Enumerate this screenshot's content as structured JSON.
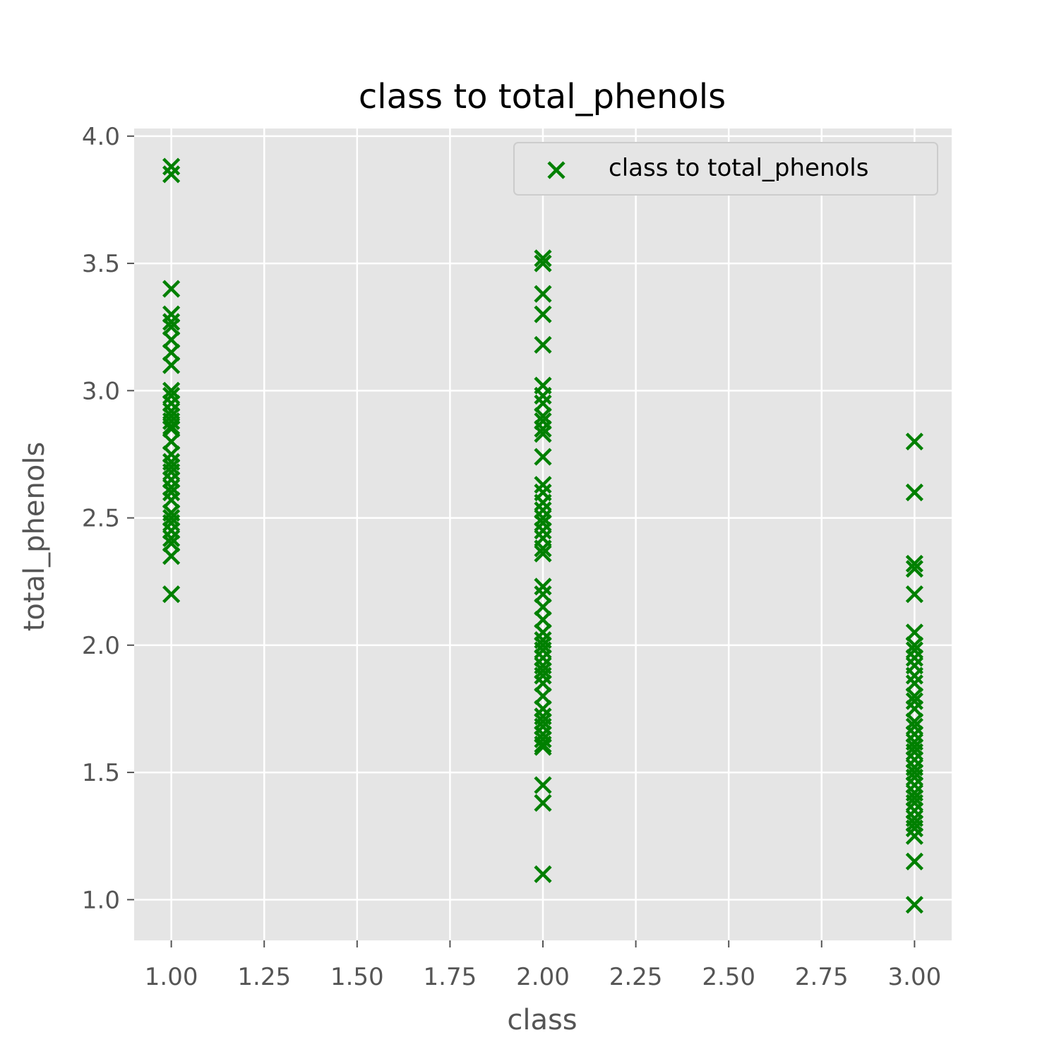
{
  "chart_data": {
    "type": "scatter",
    "title": "class to total_phenols",
    "xlabel": "class",
    "ylabel": "total_phenols",
    "xlim": [
      0.9,
      3.1
    ],
    "ylim": [
      0.84,
      4.03
    ],
    "x_ticks": [
      "1.00",
      "1.25",
      "1.50",
      "1.75",
      "2.00",
      "2.25",
      "2.50",
      "2.75",
      "3.00"
    ],
    "y_ticks": [
      "1.0",
      "1.5",
      "2.0",
      "2.5",
      "3.0",
      "3.5",
      "4.0"
    ],
    "grid": true,
    "legend_position": "top-right",
    "marker": "x",
    "colors": {
      "marker": "#008000",
      "background": "#E5E5E5",
      "grid": "#FFFFFF"
    },
    "series": [
      {
        "name": "class to total_phenols",
        "points": [
          [
            1,
            3.88
          ],
          [
            1,
            3.85
          ],
          [
            1,
            3.4
          ],
          [
            1,
            3.3
          ],
          [
            1,
            3.27
          ],
          [
            1,
            3.25
          ],
          [
            1,
            3.2
          ],
          [
            1,
            3.15
          ],
          [
            1,
            3.1
          ],
          [
            1,
            3.0
          ],
          [
            1,
            2.98
          ],
          [
            1,
            2.95
          ],
          [
            1,
            2.92
          ],
          [
            1,
            2.9
          ],
          [
            1,
            2.88
          ],
          [
            1,
            2.86
          ],
          [
            1,
            2.85
          ],
          [
            1,
            2.8
          ],
          [
            1,
            2.75
          ],
          [
            1,
            2.72
          ],
          [
            1,
            2.7
          ],
          [
            1,
            2.68
          ],
          [
            1,
            2.65
          ],
          [
            1,
            2.62
          ],
          [
            1,
            2.6
          ],
          [
            1,
            2.57
          ],
          [
            1,
            2.52
          ],
          [
            1,
            2.5
          ],
          [
            1,
            2.48
          ],
          [
            1,
            2.45
          ],
          [
            1,
            2.42
          ],
          [
            1,
            2.4
          ],
          [
            1,
            2.35
          ],
          [
            1,
            2.2
          ],
          [
            2,
            3.52
          ],
          [
            2,
            3.5
          ],
          [
            2,
            3.38
          ],
          [
            2,
            3.3
          ],
          [
            2,
            3.18
          ],
          [
            2,
            3.02
          ],
          [
            2,
            2.98
          ],
          [
            2,
            2.95
          ],
          [
            2,
            2.9
          ],
          [
            2,
            2.88
          ],
          [
            2,
            2.85
          ],
          [
            2,
            2.83
          ],
          [
            2,
            2.74
          ],
          [
            2,
            2.63
          ],
          [
            2,
            2.6
          ],
          [
            2,
            2.56
          ],
          [
            2,
            2.53
          ],
          [
            2,
            2.5
          ],
          [
            2,
            2.48
          ],
          [
            2,
            2.45
          ],
          [
            2,
            2.42
          ],
          [
            2,
            2.38
          ],
          [
            2,
            2.36
          ],
          [
            2,
            2.23
          ],
          [
            2,
            2.2
          ],
          [
            2,
            2.15
          ],
          [
            2,
            2.1
          ],
          [
            2,
            2.05
          ],
          [
            2,
            2.02
          ],
          [
            2,
            2.0
          ],
          [
            2,
            1.98
          ],
          [
            2,
            1.95
          ],
          [
            2,
            1.92
          ],
          [
            2,
            1.9
          ],
          [
            2,
            1.88
          ],
          [
            2,
            1.85
          ],
          [
            2,
            1.8
          ],
          [
            2,
            1.75
          ],
          [
            2,
            1.72
          ],
          [
            2,
            1.7
          ],
          [
            2,
            1.68
          ],
          [
            2,
            1.65
          ],
          [
            2,
            1.63
          ],
          [
            2,
            1.61
          ],
          [
            2,
            1.6
          ],
          [
            2,
            1.45
          ],
          [
            2,
            1.38
          ],
          [
            2,
            1.1
          ],
          [
            3,
            2.8
          ],
          [
            3,
            2.6
          ],
          [
            3,
            2.32
          ],
          [
            3,
            2.3
          ],
          [
            3,
            2.2
          ],
          [
            3,
            2.05
          ],
          [
            3,
            2.0
          ],
          [
            3,
            1.98
          ],
          [
            3,
            1.95
          ],
          [
            3,
            1.92
          ],
          [
            3,
            1.88
          ],
          [
            3,
            1.85
          ],
          [
            3,
            1.8
          ],
          [
            3,
            1.78
          ],
          [
            3,
            1.75
          ],
          [
            3,
            1.7
          ],
          [
            3,
            1.68
          ],
          [
            3,
            1.65
          ],
          [
            3,
            1.62
          ],
          [
            3,
            1.6
          ],
          [
            3,
            1.58
          ],
          [
            3,
            1.55
          ],
          [
            3,
            1.52
          ],
          [
            3,
            1.5
          ],
          [
            3,
            1.48
          ],
          [
            3,
            1.45
          ],
          [
            3,
            1.42
          ],
          [
            3,
            1.4
          ],
          [
            3,
            1.38
          ],
          [
            3,
            1.35
          ],
          [
            3,
            1.32
          ],
          [
            3,
            1.3
          ],
          [
            3,
            1.28
          ],
          [
            3,
            1.25
          ],
          [
            3,
            1.15
          ],
          [
            3,
            0.98
          ]
        ]
      }
    ]
  }
}
